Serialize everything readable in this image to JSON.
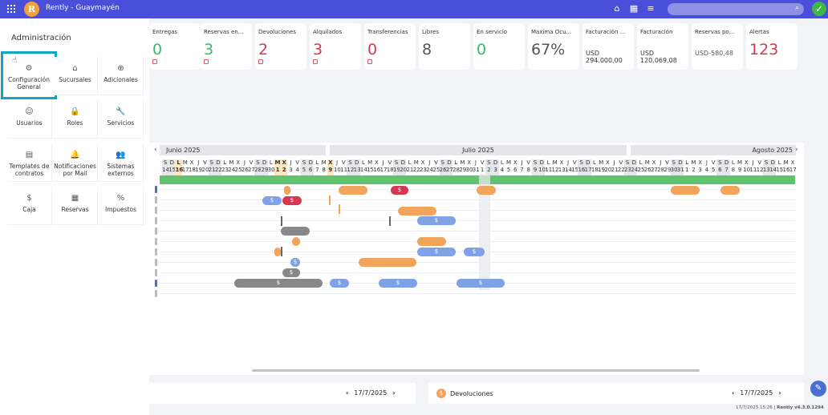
{
  "app": {
    "title": "Rently - Guaymayén",
    "logo_letter": "R"
  },
  "topbar": {
    "icons": [
      "home-icon",
      "calendar-icon",
      "menu-icon"
    ],
    "search_placeholder": ""
  },
  "side_panel": {
    "title": "Administración",
    "tiles": [
      {
        "label": "Configuración General",
        "icon": "gear-icon"
      },
      {
        "label": "Sucursales",
        "icon": "home-icon"
      },
      {
        "label": "Adicionales",
        "icon": "plus-circle-icon"
      },
      {
        "label": "Usuarios",
        "icon": "user-icon"
      },
      {
        "label": "Roles",
        "icon": "lock-icon"
      },
      {
        "label": "Servicios",
        "icon": "wrench-icon"
      },
      {
        "label": "Templates de contratos",
        "icon": "document-icon"
      },
      {
        "label": "Notificaciones por Mail",
        "icon": "bell-icon"
      },
      {
        "label": "Sistemas externos",
        "icon": "user-plus-icon"
      },
      {
        "label": "Caja",
        "icon": "dollar-icon"
      },
      {
        "label": "Reservas",
        "icon": "calendar-icon"
      },
      {
        "label": "Impuestos",
        "icon": "percent-icon"
      }
    ]
  },
  "cards": [
    {
      "label": "Entregas",
      "value": "0",
      "color": "#3cb86a"
    },
    {
      "label": "Reservas en...",
      "value": "3",
      "color": "#3cb86a"
    },
    {
      "label": "Devoluciones",
      "value": "2",
      "color": "#d63750"
    },
    {
      "label": "Alquilados",
      "value": "3",
      "color": "#d63750"
    },
    {
      "label": "Transferencias",
      "value": "0",
      "color": "#d63750"
    },
    {
      "label": "Libres",
      "value": "8",
      "color": "#555555"
    },
    {
      "label": "En servicio",
      "value": "0",
      "color": "#3cb86a"
    },
    {
      "label": "Maxima Ocu...",
      "value": "67%",
      "color": "#555555"
    },
    {
      "label": "Facturación ...",
      "value": "USD 294.000,00",
      "color": "#333333"
    },
    {
      "label": "Facturación",
      "value": "USD 120.069,08",
      "color": "#333333"
    },
    {
      "label": "Reservas po...",
      "value": "USD-580,48",
      "color": "#555555"
    },
    {
      "label": "Alertas",
      "value": "123",
      "color": "#d63750"
    }
  ],
  "calendar": {
    "months": [
      "Junio 2025",
      "Julio 2025",
      "Agosto 2025"
    ],
    "day_letters": [
      "S",
      "D",
      "L",
      "M",
      "X",
      "J",
      "V",
      "S",
      "D",
      "L",
      "M",
      "X",
      "J",
      "V",
      "S",
      "D",
      "L",
      "M",
      "X",
      "J",
      "V",
      "S",
      "D",
      "L",
      "M",
      "X",
      "J",
      "V",
      "S",
      "D",
      "L",
      "M",
      "X",
      "J",
      "V",
      "S",
      "D",
      "L",
      "M",
      "X",
      "J",
      "V",
      "S",
      "D",
      "L",
      "M",
      "X",
      "J",
      "V",
      "S",
      "D",
      "L",
      "M",
      "X",
      "J",
      "V",
      "S",
      "D",
      "L",
      "M",
      "X",
      "J",
      "V",
      "S",
      "D",
      "L",
      "M",
      "X",
      "J",
      "V",
      "S",
      "D",
      "L",
      "M",
      "X",
      "J",
      "V",
      "S",
      "D",
      "L",
      "M",
      "X",
      "J",
      "V",
      "S",
      "D",
      "L",
      "M",
      "X",
      "J",
      "V",
      "S",
      "D",
      "L",
      "M",
      "X",
      "J"
    ],
    "day_numbers": [
      "14",
      "15",
      "16",
      "17",
      "18",
      "19",
      "20",
      "21",
      "22",
      "23",
      "24",
      "25",
      "26",
      "27",
      "28",
      "29",
      "30",
      "1",
      "2",
      "3",
      "4",
      "5",
      "6",
      "7",
      "8",
      "9",
      "10",
      "11",
      "12",
      "13",
      "14",
      "15",
      "16",
      "17",
      "18",
      "19",
      "20",
      "21",
      "22",
      "23",
      "24",
      "25",
      "26",
      "27",
      "28",
      "29",
      "30",
      "31",
      "1",
      "2",
      "3",
      "4",
      "5",
      "6",
      "7",
      "8",
      "9",
      "10",
      "11",
      "12",
      "13",
      "14",
      "15",
      "16",
      "17",
      "18",
      "19",
      "20",
      "21",
      "22",
      "23",
      "24",
      "25",
      "26",
      "27",
      "28",
      "29",
      "30",
      "31",
      "1",
      "2",
      "3",
      "4",
      "5",
      "6",
      "7",
      "8",
      "9",
      "10",
      "11",
      "12",
      "13",
      "14",
      "15",
      "16",
      "17"
    ],
    "bar_symbol": "$"
  },
  "bottom": {
    "left_date": "17/7/2025",
    "right_label": "Devoluciones",
    "right_date": "17/7/2025"
  },
  "footer": {
    "timestamp": "17/7/2025 15:26",
    "version": "Rently v4.3.0.1294"
  }
}
